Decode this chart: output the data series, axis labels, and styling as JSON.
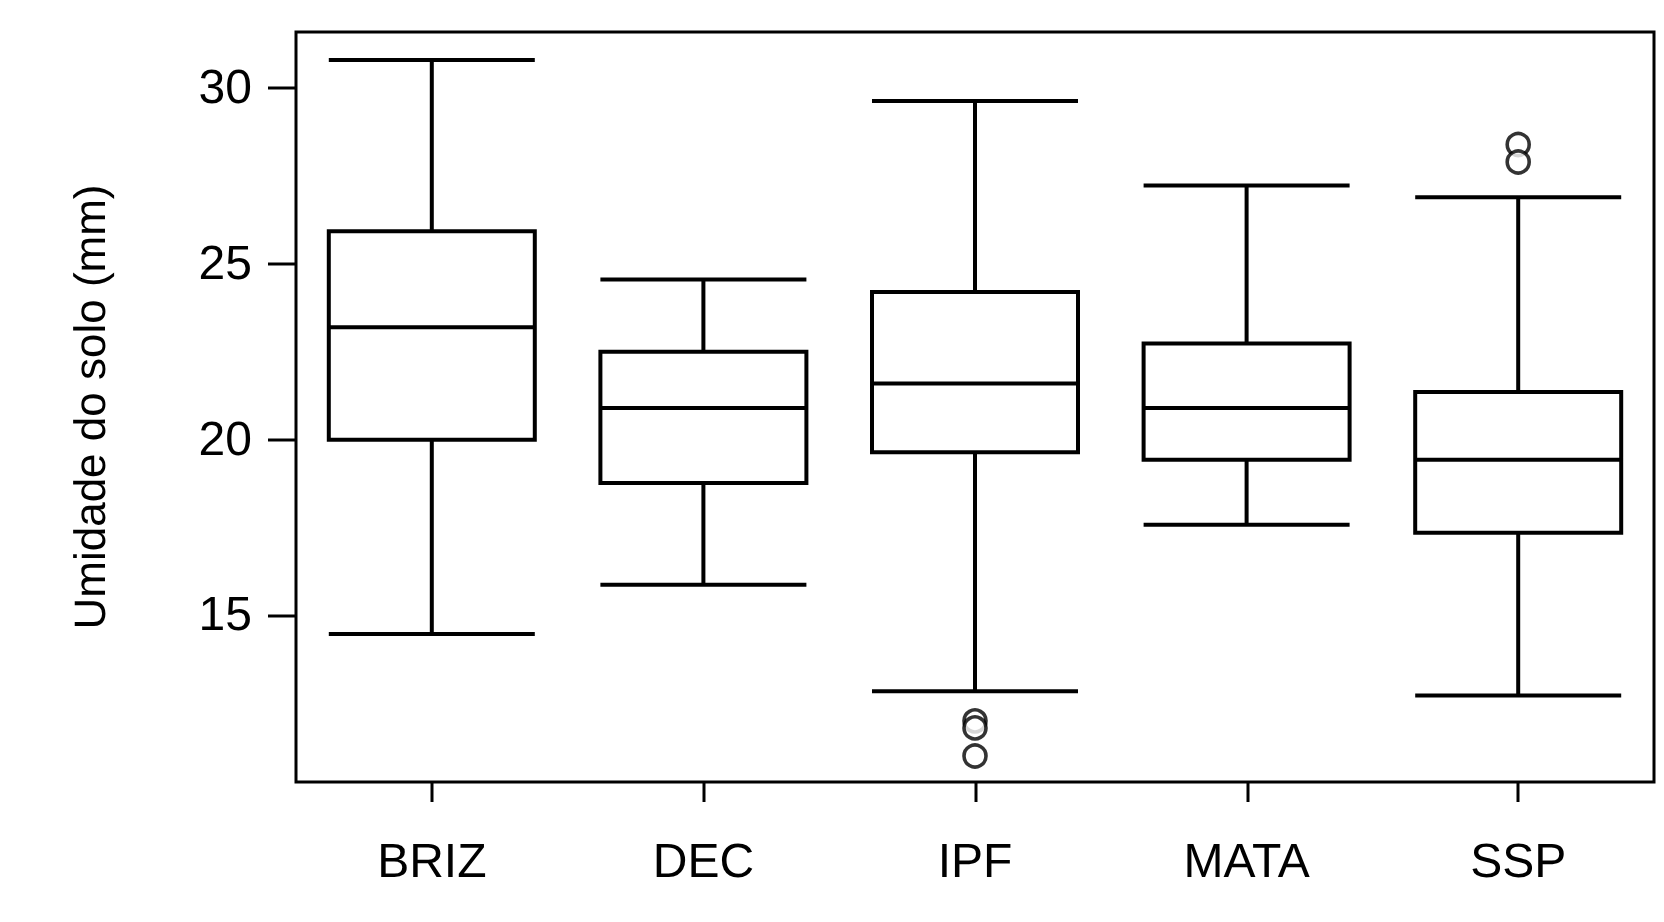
{
  "chart_data": {
    "type": "box",
    "ylabel": "Umidade do solo (mm)",
    "categories": [
      "BRIZ",
      "DEC",
      "IPF",
      "MATA",
      "SSP"
    ],
    "boxes": [
      {
        "low": 14.47,
        "q1": 20.0,
        "median": 23.2,
        "q3": 25.93,
        "high": 30.8
      },
      {
        "low": 15.87,
        "q1": 18.77,
        "median": 20.9,
        "q3": 22.5,
        "high": 24.56
      },
      {
        "low": 12.84,
        "q1": 19.64,
        "median": 21.6,
        "q3": 24.2,
        "high": 29.64,
        "outliers": [
          12.0,
          11.8,
          11.0
        ]
      },
      {
        "low": 17.58,
        "q1": 19.43,
        "median": 20.9,
        "q3": 22.74,
        "high": 27.23
      },
      {
        "low": 12.72,
        "q1": 17.35,
        "median": 19.43,
        "q3": 21.36,
        "high": 26.9,
        "outliers": [
          28.4,
          27.9
        ]
      }
    ],
    "color": "#000000",
    "ylim": [
      10.26,
      31.6
    ],
    "yticks": [
      15,
      20,
      25,
      30
    ],
    "grid": false
  }
}
